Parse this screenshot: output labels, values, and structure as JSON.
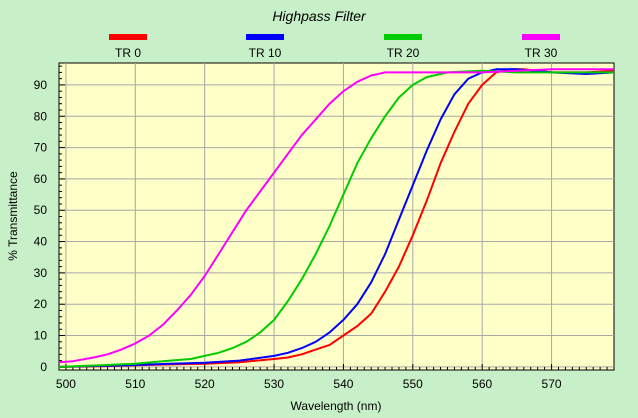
{
  "chart_data": {
    "type": "line",
    "title": "Highpass Filter",
    "xlabel": "Wavelength (nm)",
    "ylabel": "% Transmittance",
    "xlim": [
      499,
      579
    ],
    "ylim": [
      -1,
      97
    ],
    "xticks": [
      500,
      510,
      520,
      530,
      540,
      550,
      560,
      570
    ],
    "yticks": [
      0,
      10,
      20,
      30,
      40,
      50,
      60,
      70,
      80,
      90
    ],
    "grid": true,
    "legend_position": "top",
    "series": [
      {
        "name": "TR 0",
        "color": "#ff0000",
        "points": [
          [
            499,
            0
          ],
          [
            505,
            0.2
          ],
          [
            510,
            0.5
          ],
          [
            515,
            0.8
          ],
          [
            520,
            1
          ],
          [
            525,
            1.5
          ],
          [
            530,
            2.5
          ],
          [
            532,
            3
          ],
          [
            534,
            4
          ],
          [
            536,
            5.5
          ],
          [
            538,
            7
          ],
          [
            540,
            10
          ],
          [
            542,
            13
          ],
          [
            544,
            17
          ],
          [
            546,
            24
          ],
          [
            548,
            32
          ],
          [
            550,
            42
          ],
          [
            552,
            53
          ],
          [
            554,
            65
          ],
          [
            556,
            75
          ],
          [
            558,
            84
          ],
          [
            560,
            90
          ],
          [
            562,
            94
          ],
          [
            564,
            95
          ],
          [
            566,
            95
          ],
          [
            570,
            94
          ],
          [
            575,
            94
          ],
          [
            579,
            94.5
          ]
        ]
      },
      {
        "name": "TR 10",
        "color": "#0000ff",
        "points": [
          [
            499,
            0
          ],
          [
            505,
            0.3
          ],
          [
            510,
            0.6
          ],
          [
            515,
            1
          ],
          [
            520,
            1.3
          ],
          [
            525,
            2
          ],
          [
            530,
            3.5
          ],
          [
            532,
            4.5
          ],
          [
            534,
            6
          ],
          [
            536,
            8
          ],
          [
            538,
            11
          ],
          [
            540,
            15
          ],
          [
            542,
            20
          ],
          [
            544,
            27
          ],
          [
            546,
            36
          ],
          [
            548,
            47
          ],
          [
            550,
            58
          ],
          [
            552,
            69
          ],
          [
            554,
            79
          ],
          [
            556,
            87
          ],
          [
            558,
            92
          ],
          [
            560,
            94
          ],
          [
            562,
            95
          ],
          [
            565,
            95
          ],
          [
            570,
            94
          ],
          [
            575,
            93.5
          ],
          [
            579,
            94
          ]
        ]
      },
      {
        "name": "TR 20",
        "color": "#00cc00",
        "points": [
          [
            499,
            0
          ],
          [
            505,
            0.5
          ],
          [
            510,
            1
          ],
          [
            515,
            2
          ],
          [
            518,
            2.5
          ],
          [
            520,
            3.5
          ],
          [
            522,
            4.5
          ],
          [
            524,
            6
          ],
          [
            526,
            8
          ],
          [
            528,
            11
          ],
          [
            530,
            15
          ],
          [
            532,
            21
          ],
          [
            534,
            28
          ],
          [
            536,
            36
          ],
          [
            538,
            45
          ],
          [
            540,
            55
          ],
          [
            542,
            65
          ],
          [
            544,
            73
          ],
          [
            546,
            80
          ],
          [
            548,
            86
          ],
          [
            550,
            90
          ],
          [
            552,
            92.5
          ],
          [
            555,
            94
          ],
          [
            560,
            94.5
          ],
          [
            565,
            94
          ],
          [
            570,
            94
          ],
          [
            575,
            94
          ],
          [
            579,
            94
          ]
        ]
      },
      {
        "name": "TR 30",
        "color": "#ff00ff",
        "points": [
          [
            499,
            1.5
          ],
          [
            501,
            1.8
          ],
          [
            504,
            3
          ],
          [
            506,
            4
          ],
          [
            508,
            5.5
          ],
          [
            510,
            7.5
          ],
          [
            512,
            10
          ],
          [
            514,
            13.5
          ],
          [
            516,
            18
          ],
          [
            518,
            23
          ],
          [
            520,
            29
          ],
          [
            522,
            36
          ],
          [
            524,
            43
          ],
          [
            526,
            50
          ],
          [
            528,
            56
          ],
          [
            530,
            62
          ],
          [
            532,
            68
          ],
          [
            534,
            74
          ],
          [
            536,
            79
          ],
          [
            538,
            84
          ],
          [
            540,
            88
          ],
          [
            542,
            91
          ],
          [
            544,
            93
          ],
          [
            546,
            94
          ],
          [
            550,
            94
          ],
          [
            555,
            94
          ],
          [
            560,
            94
          ],
          [
            565,
            94.5
          ],
          [
            570,
            95
          ],
          [
            575,
            95
          ],
          [
            579,
            95
          ]
        ]
      }
    ]
  }
}
